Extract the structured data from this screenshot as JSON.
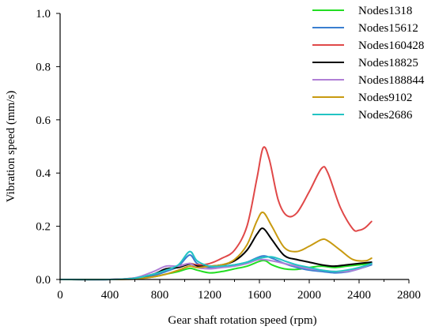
{
  "chart_data": {
    "type": "line",
    "title": "",
    "xlabel": "Gear shaft rotation speed (rpm)",
    "ylabel": "Vibration speed (mm/s)",
    "xlim": [
      0,
      2800
    ],
    "ylim": [
      0,
      1.0
    ],
    "xticks": [
      0,
      400,
      800,
      1200,
      1600,
      2000,
      2400,
      2800
    ],
    "xtick_labels": [
      "0",
      "400",
      "800",
      "1200",
      "1600",
      "2000",
      "2400",
      "2800"
    ],
    "yticks": [
      0,
      0.2,
      0.4,
      0.6,
      0.8,
      1.0
    ],
    "ytick_labels": [
      "0.0",
      "0.2",
      "0.4",
      "0.6",
      "0.8",
      "1.0"
    ],
    "grid": false,
    "legend_position": "top-right",
    "series": [
      {
        "name": "Nodes1318",
        "color": "#22dd22",
        "points": [
          [
            0,
            0
          ],
          [
            400,
            0
          ],
          [
            600,
            0.003
          ],
          [
            750,
            0.01
          ],
          [
            850,
            0.02
          ],
          [
            950,
            0.03
          ],
          [
            1040,
            0.042
          ],
          [
            1100,
            0.035
          ],
          [
            1200,
            0.025
          ],
          [
            1300,
            0.03
          ],
          [
            1400,
            0.04
          ],
          [
            1500,
            0.05
          ],
          [
            1600,
            0.068
          ],
          [
            1650,
            0.07
          ],
          [
            1700,
            0.055
          ],
          [
            1800,
            0.04
          ],
          [
            1900,
            0.038
          ],
          [
            2000,
            0.045
          ],
          [
            2100,
            0.05
          ],
          [
            2200,
            0.045
          ],
          [
            2300,
            0.05
          ],
          [
            2400,
            0.055
          ],
          [
            2500,
            0.06
          ]
        ]
      },
      {
        "name": "Nodes15612",
        "color": "#3a7fd0",
        "points": [
          [
            0,
            0
          ],
          [
            400,
            0
          ],
          [
            600,
            0.005
          ],
          [
            750,
            0.015
          ],
          [
            850,
            0.03
          ],
          [
            950,
            0.05
          ],
          [
            1040,
            0.092
          ],
          [
            1100,
            0.06
          ],
          [
            1200,
            0.045
          ],
          [
            1300,
            0.05
          ],
          [
            1400,
            0.055
          ],
          [
            1500,
            0.065
          ],
          [
            1620,
            0.088
          ],
          [
            1700,
            0.08
          ],
          [
            1800,
            0.06
          ],
          [
            1900,
            0.045
          ],
          [
            2000,
            0.035
          ],
          [
            2100,
            0.03
          ],
          [
            2200,
            0.025
          ],
          [
            2300,
            0.028
          ],
          [
            2400,
            0.04
          ],
          [
            2500,
            0.055
          ]
        ]
      },
      {
        "name": "Nodes160428",
        "color": "#e04848",
        "points": [
          [
            0,
            0
          ],
          [
            400,
            0
          ],
          [
            600,
            0.006
          ],
          [
            750,
            0.02
          ],
          [
            850,
            0.035
          ],
          [
            950,
            0.05
          ],
          [
            1040,
            0.06
          ],
          [
            1100,
            0.055
          ],
          [
            1200,
            0.06
          ],
          [
            1300,
            0.08
          ],
          [
            1400,
            0.11
          ],
          [
            1500,
            0.2
          ],
          [
            1580,
            0.38
          ],
          [
            1630,
            0.495
          ],
          [
            1680,
            0.45
          ],
          [
            1750,
            0.3
          ],
          [
            1820,
            0.24
          ],
          [
            1900,
            0.25
          ],
          [
            2000,
            0.33
          ],
          [
            2100,
            0.418
          ],
          [
            2150,
            0.4
          ],
          [
            2250,
            0.27
          ],
          [
            2350,
            0.19
          ],
          [
            2400,
            0.185
          ],
          [
            2450,
            0.195
          ],
          [
            2500,
            0.218
          ]
        ]
      },
      {
        "name": "Nodes18825",
        "color": "#000000",
        "points": [
          [
            0,
            0
          ],
          [
            400,
            0
          ],
          [
            600,
            0.004
          ],
          [
            750,
            0.02
          ],
          [
            850,
            0.04
          ],
          [
            950,
            0.045
          ],
          [
            1040,
            0.058
          ],
          [
            1100,
            0.05
          ],
          [
            1200,
            0.05
          ],
          [
            1300,
            0.055
          ],
          [
            1400,
            0.07
          ],
          [
            1500,
            0.11
          ],
          [
            1580,
            0.17
          ],
          [
            1630,
            0.192
          ],
          [
            1700,
            0.15
          ],
          [
            1800,
            0.09
          ],
          [
            1900,
            0.075
          ],
          [
            2000,
            0.065
          ],
          [
            2100,
            0.055
          ],
          [
            2200,
            0.05
          ],
          [
            2300,
            0.055
          ],
          [
            2400,
            0.06
          ],
          [
            2500,
            0.065
          ]
        ]
      },
      {
        "name": "Nodes188844",
        "color": "#b07fd6",
        "points": [
          [
            0,
            0
          ],
          [
            400,
            0
          ],
          [
            600,
            0.006
          ],
          [
            750,
            0.03
          ],
          [
            850,
            0.05
          ],
          [
            950,
            0.05
          ],
          [
            1040,
            0.06
          ],
          [
            1100,
            0.045
          ],
          [
            1200,
            0.04
          ],
          [
            1300,
            0.045
          ],
          [
            1400,
            0.05
          ],
          [
            1500,
            0.06
          ],
          [
            1600,
            0.075
          ],
          [
            1700,
            0.07
          ],
          [
            1800,
            0.06
          ],
          [
            1900,
            0.05
          ],
          [
            2000,
            0.04
          ],
          [
            2100,
            0.035
          ],
          [
            2200,
            0.03
          ],
          [
            2300,
            0.03
          ],
          [
            2400,
            0.04
          ],
          [
            2500,
            0.06
          ]
        ]
      },
      {
        "name": "Nodes9102",
        "color": "#c89a10",
        "points": [
          [
            0,
            0
          ],
          [
            400,
            0
          ],
          [
            600,
            0.002
          ],
          [
            750,
            0.01
          ],
          [
            850,
            0.02
          ],
          [
            950,
            0.035
          ],
          [
            1040,
            0.05
          ],
          [
            1100,
            0.045
          ],
          [
            1200,
            0.05
          ],
          [
            1300,
            0.055
          ],
          [
            1400,
            0.075
          ],
          [
            1500,
            0.13
          ],
          [
            1580,
            0.22
          ],
          [
            1630,
            0.252
          ],
          [
            1700,
            0.2
          ],
          [
            1800,
            0.12
          ],
          [
            1900,
            0.105
          ],
          [
            2000,
            0.125
          ],
          [
            2100,
            0.15
          ],
          [
            2150,
            0.145
          ],
          [
            2250,
            0.11
          ],
          [
            2350,
            0.075
          ],
          [
            2450,
            0.07
          ],
          [
            2500,
            0.08
          ]
        ]
      },
      {
        "name": "Nodes2686",
        "color": "#22c4c4",
        "points": [
          [
            0,
            0
          ],
          [
            400,
            0
          ],
          [
            600,
            0.005
          ],
          [
            750,
            0.02
          ],
          [
            850,
            0.035
          ],
          [
            950,
            0.055
          ],
          [
            1040,
            0.105
          ],
          [
            1100,
            0.07
          ],
          [
            1200,
            0.05
          ],
          [
            1300,
            0.05
          ],
          [
            1400,
            0.055
          ],
          [
            1500,
            0.065
          ],
          [
            1600,
            0.08
          ],
          [
            1700,
            0.085
          ],
          [
            1800,
            0.07
          ],
          [
            1900,
            0.055
          ],
          [
            2000,
            0.045
          ],
          [
            2100,
            0.035
          ],
          [
            2200,
            0.03
          ],
          [
            2300,
            0.035
          ],
          [
            2400,
            0.045
          ],
          [
            2500,
            0.06
          ]
        ]
      }
    ]
  }
}
